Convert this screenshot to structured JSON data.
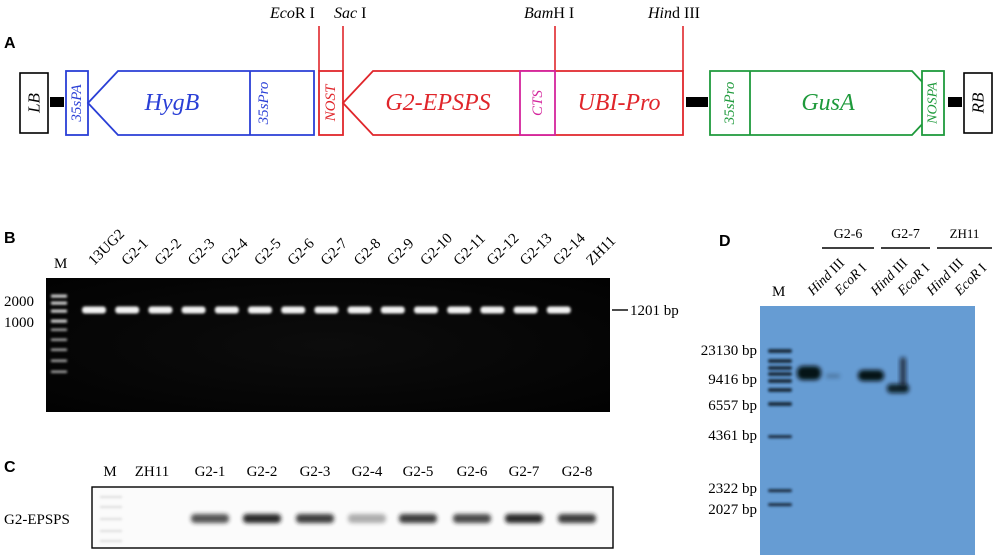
{
  "panel_a": {
    "label": "A",
    "sites": [
      {
        "italic": "Eco",
        "rest": "R I"
      },
      {
        "italic": "Sac",
        "rest": " I"
      },
      {
        "italic": "Bam",
        "rest": "H I"
      },
      {
        "italic": "Hin",
        "rest": "d III"
      }
    ],
    "elements": {
      "lb": "LB",
      "sspa_left": "35sPA",
      "hygb": "HygB",
      "sspro_left": "35sPro",
      "nost": "NOST",
      "g2epsps": "G2-EPSPS",
      "cts": "CTS",
      "ubipro": "UBI-Pro",
      "sspro_right": "35sPro",
      "gusa": "GusA",
      "nospa": "NOSPA",
      "rb": "RB"
    },
    "colors": {
      "blue": "#2a3fd6",
      "red": "#e0262b",
      "magenta": "#d4249c",
      "green": "#1f9a3c",
      "black": "#000000"
    }
  },
  "panel_b": {
    "label": "B",
    "marker": "M",
    "lanes": [
      "13UG2",
      "G2-1",
      "G2-2",
      "G2-3",
      "G2-4",
      "G2-5",
      "G2-6",
      "G2-7",
      "G2-8",
      "G2-9",
      "G2-10",
      "G2-11",
      "G2-12",
      "G2-13",
      "G2-14",
      "ZH11"
    ],
    "ladder_labels": [
      "2000",
      "1000"
    ],
    "band_label": "1201 bp"
  },
  "panel_c": {
    "label": "C",
    "lanes": [
      "M",
      "ZH11",
      "G2-1",
      "G2-2",
      "G2-3",
      "G2-4",
      "G2-5",
      "G2-6",
      "G2-7",
      "G2-8"
    ],
    "row_label": "G2-EPSPS"
  },
  "panel_d": {
    "label": "D",
    "marker": "M",
    "groups": [
      "G2-6",
      "G2-7",
      "ZH11"
    ],
    "lane_enzymes": [
      {
        "italic": "Hind",
        "rest": " III"
      },
      {
        "italic": "EcoR",
        "rest": " I"
      },
      {
        "italic": "Hind",
        "rest": " III"
      },
      {
        "italic": "EcoR",
        "rest": " I"
      },
      {
        "italic": "Hind",
        "rest": " III"
      },
      {
        "italic": "EcoR",
        "rest": " I"
      }
    ],
    "sizes": [
      "23130 bp",
      "9416 bp",
      "6557 bp",
      "4361 bp",
      "2322 bp",
      "2027 bp"
    ],
    "background": "#6ea3d8"
  }
}
